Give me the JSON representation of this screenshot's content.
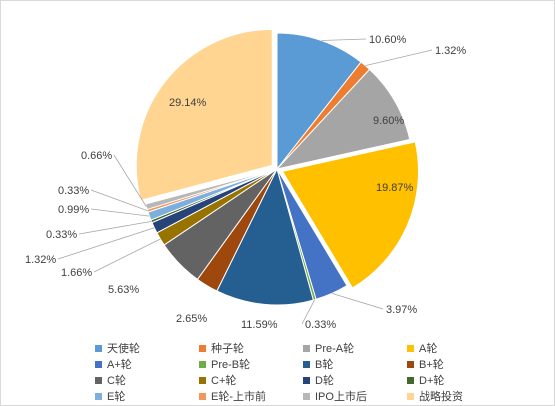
{
  "chart_data": {
    "type": "pie",
    "title": "",
    "legend_position": "bottom",
    "start_angle": "12 o'clock, clockwise",
    "slices": [
      {
        "name": "天使轮",
        "value": 10.6,
        "label": "10.60%",
        "color": "#5B9BD5"
      },
      {
        "name": "种子轮",
        "value": 1.32,
        "label": "1.32%",
        "color": "#ED7D31"
      },
      {
        "name": "Pre-A轮",
        "value": 9.6,
        "label": "9.60%",
        "color": "#A5A5A5"
      },
      {
        "name": "A轮",
        "value": 19.87,
        "label": "19.87%",
        "color": "#FFC000"
      },
      {
        "name": "A+轮",
        "value": 3.97,
        "label": "3.97%",
        "color": "#4472C4"
      },
      {
        "name": "Pre-B轮",
        "value": 0.33,
        "label": "0.33%",
        "color": "#70AD47"
      },
      {
        "name": "B轮",
        "value": 11.59,
        "label": "11.59%",
        "color": "#255E91"
      },
      {
        "name": "B+轮",
        "value": 2.65,
        "label": "2.65%",
        "color": "#9E480E"
      },
      {
        "name": "C轮",
        "value": 5.63,
        "label": "5.63%",
        "color": "#636363"
      },
      {
        "name": "C+轮",
        "value": 1.66,
        "label": "1.66%",
        "color": "#997300"
      },
      {
        "name": "D轮",
        "value": 1.32,
        "label": "1.32%",
        "color": "#264478"
      },
      {
        "name": "D+轮",
        "value": 0.33,
        "label": "0.33%",
        "color": "#43682B"
      },
      {
        "name": "E轮",
        "value": 0.99,
        "label": "0.99%",
        "color": "#7CAFDD"
      },
      {
        "name": "E轮-上市前",
        "value": 0.33,
        "label": "0.33%",
        "color": "#F1975A"
      },
      {
        "name": "IPO上市后",
        "value": 0.66,
        "label": "0.66%",
        "color": "#B7B7B7"
      },
      {
        "name": "战略投资",
        "value": 29.14,
        "label": "29.14%",
        "color": "#FFD591"
      }
    ]
  }
}
